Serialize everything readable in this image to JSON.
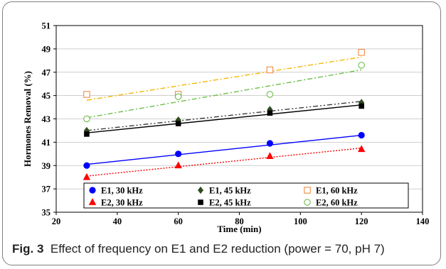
{
  "caption": {
    "label": "Fig. 3",
    "text": "Effect of frequency on E1 and E2 reduction (power = 70, pH 7)"
  },
  "chart_data": {
    "type": "scatter",
    "xlabel": "Time (min)",
    "ylabel": "Hormones Removal (%)",
    "xlim": [
      20,
      140
    ],
    "ylim": [
      35,
      51
    ],
    "xticks": [
      20,
      40,
      60,
      80,
      100,
      120,
      140
    ],
    "yticks": [
      35,
      37,
      39,
      41,
      43,
      45,
      47,
      49,
      51
    ],
    "grid": "horizontal",
    "legend_position": "bottom-inside",
    "series": [
      {
        "name": "E1, 30 kHz",
        "x": [
          30,
          60,
          90,
          120
        ],
        "values": [
          39.0,
          40.0,
          40.9,
          41.6
        ],
        "fit": [
          39.1,
          41.6
        ],
        "marker": "circle",
        "filled": true,
        "color": "#0000ff",
        "line_color": "#0000ff",
        "line_style": "solid"
      },
      {
        "name": "E1, 45 kHz",
        "x": [
          30,
          60,
          90,
          120
        ],
        "values": [
          42.0,
          42.9,
          43.8,
          44.4
        ],
        "fit": [
          42.0,
          44.5
        ],
        "marker": "diamond",
        "filled": true,
        "color": "#2e4d1f",
        "line_color": "#3a3a3a",
        "line_style": "dashdotdot"
      },
      {
        "name": "E1, 60 kHz",
        "x": [
          30,
          60,
          90,
          120
        ],
        "values": [
          45.1,
          45.1,
          47.2,
          48.7
        ],
        "fit": [
          44.6,
          48.3
        ],
        "marker": "square",
        "filled": false,
        "color": "#f28c46",
        "line_color": "#f5b800",
        "line_style": "dashdot"
      },
      {
        "name": "E2, 30 kHz",
        "x": [
          30,
          60,
          90,
          120
        ],
        "values": [
          38.0,
          39.0,
          39.8,
          40.4
        ],
        "fit": [
          38.1,
          40.5
        ],
        "marker": "triangle",
        "filled": true,
        "color": "#ff0000",
        "line_color": "#ff0000",
        "line_style": "dotted"
      },
      {
        "name": "E2, 45 kHz",
        "x": [
          30,
          60,
          90,
          120
        ],
        "values": [
          41.7,
          42.6,
          43.5,
          44.1
        ],
        "fit": [
          41.8,
          44.2
        ],
        "marker": "square",
        "filled": true,
        "color": "#000000",
        "line_color": "#000000",
        "line_style": "solid"
      },
      {
        "name": "E2, 60 kHz",
        "x": [
          30,
          60,
          90,
          120
        ],
        "values": [
          43.0,
          44.9,
          45.1,
          47.6
        ],
        "fit": [
          43.1,
          47.2
        ],
        "marker": "circle",
        "filled": false,
        "color": "#6cbf4a",
        "line_color": "#6cbf4a",
        "line_style": "dashdot"
      }
    ]
  }
}
